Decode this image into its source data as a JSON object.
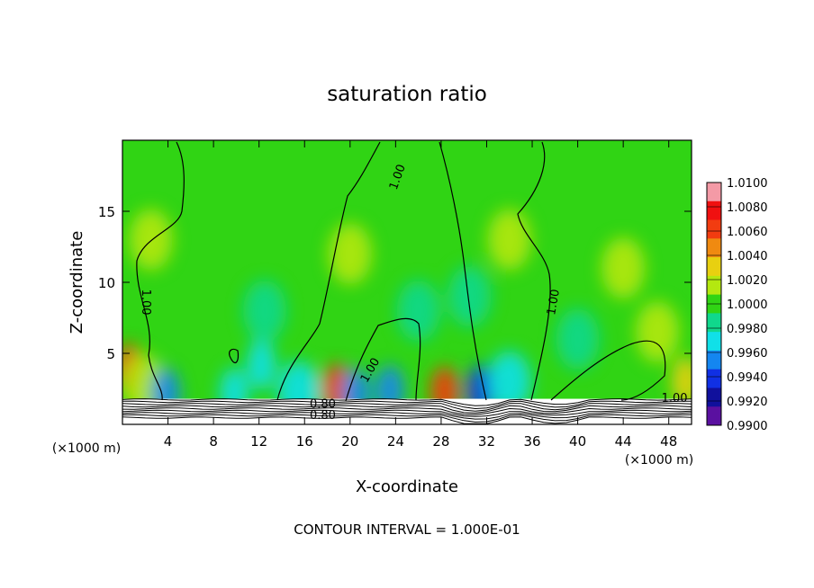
{
  "chart_data": {
    "type": "heatmap",
    "title": "saturation ratio",
    "xlabel": "X-coordinate",
    "ylabel": "Z-coordinate",
    "x_unit_label": "(×1000 m)",
    "x_unit_label_right": "(×1000 m)",
    "xlim": [
      0,
      50
    ],
    "ylim": [
      0,
      20
    ],
    "x_ticks": [
      4,
      8,
      12,
      16,
      20,
      24,
      28,
      32,
      36,
      40,
      44,
      48
    ],
    "x_tick_labels": [
      "4",
      "8",
      "12",
      "16",
      "20",
      "24",
      "28",
      "32",
      "36",
      "40",
      "44",
      "48"
    ],
    "y_ticks": [
      5,
      10,
      15
    ],
    "y_tick_labels": [
      "5",
      "10",
      "15"
    ],
    "footer": "CONTOUR INTERVAL = 1.000E-01",
    "colorbar": {
      "labels": [
        "1.0100",
        "1.0080",
        "1.0060",
        "1.0040",
        "1.0020",
        "1.0000",
        "0.9980",
        "0.9960",
        "0.9940",
        "0.9920",
        "0.9900"
      ],
      "colors": [
        "#f49aa6",
        "#f01010",
        "#f23c10",
        "#f08a10",
        "#e8d010",
        "#b4e810",
        "#30d414",
        "#10d88c",
        "#10e0e8",
        "#1486f0",
        "#1030e4",
        "#10109c",
        "#5a10a0"
      ]
    },
    "contour_labels": [
      {
        "text": "1.00",
        "x": 24.2,
        "z": 17.4,
        "angle": -70
      },
      {
        "text": "1.00",
        "x": 2.0,
        "z": 8.6,
        "angle": 90
      },
      {
        "text": "1.00",
        "x": 21.8,
        "z": 3.8,
        "angle": -60
      },
      {
        "text": "1.00",
        "x": 37.9,
        "z": 8.6,
        "angle": -80
      },
      {
        "text": "1.00",
        "x": 48.5,
        "z": 1.8,
        "angle": 0
      },
      {
        "text": "0.80",
        "x": 17.6,
        "z": 1.4,
        "angle": 0
      },
      {
        "text": "0.80",
        "x": 17.6,
        "z": 0.6,
        "angle": 0
      }
    ],
    "features": [
      {
        "x": 0.6,
        "z": 3.9,
        "value": 1.006
      },
      {
        "x": 1.8,
        "z": 2.8,
        "value": 1.002
      },
      {
        "x": 18.8,
        "z": 2.5,
        "value": 1.007
      },
      {
        "x": 28.3,
        "z": 2.3,
        "value": 1.007
      },
      {
        "x": 31.5,
        "z": 2.4,
        "value": 0.993
      },
      {
        "x": 23.5,
        "z": 2.4,
        "value": 0.995
      },
      {
        "x": 12.2,
        "z": 4.2,
        "value": 0.996
      },
      {
        "x": 9.8,
        "z": 2.2,
        "value": 0.996
      },
      {
        "x": 34.0,
        "z": 3.0,
        "value": 0.997
      },
      {
        "x": 20.5,
        "z": 2.2,
        "value": 0.995
      },
      {
        "x": 3.8,
        "z": 2.2,
        "value": 0.995
      },
      {
        "x": 15.5,
        "z": 2.3,
        "value": 0.997
      },
      {
        "x": 2.5,
        "z": 13.0,
        "value": 1.002
      },
      {
        "x": 30.5,
        "z": 9.0,
        "value": 0.998
      },
      {
        "x": 12.5,
        "z": 8.0,
        "value": 0.998
      },
      {
        "x": 26.0,
        "z": 8.0,
        "value": 0.999
      },
      {
        "x": 40.0,
        "z": 6.0,
        "value": 0.999
      },
      {
        "x": 47.0,
        "z": 6.5,
        "value": 1.002
      },
      {
        "x": 49.5,
        "z": 3.0,
        "value": 1.004
      },
      {
        "x": 34.0,
        "z": 13.0,
        "value": 1.002
      },
      {
        "x": 20.0,
        "z": 12.0,
        "value": 1.002
      },
      {
        "x": 44.0,
        "z": 11.0,
        "value": 1.002
      }
    ]
  }
}
